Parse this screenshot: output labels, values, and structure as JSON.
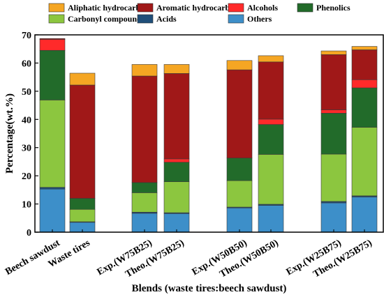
{
  "chart_data": {
    "type": "bar",
    "stacked": true,
    "xlabel": "Blends (waste tires:beech sawdust)",
    "ylabel": "Percentage(wt.%)",
    "ylim": [
      0,
      70
    ],
    "yticks": [
      0,
      10,
      20,
      30,
      40,
      50,
      60,
      70
    ],
    "grid": false,
    "legend_position": "top",
    "categories": [
      "Beech sawdust",
      "Waste tires",
      "Exp.(W75B25)",
      "Theo.(W75B25)",
      "Exp.(W50B50)",
      "Theo.(W50B50)",
      "Exp.(W25B75)",
      "Theo.(W25B75)"
    ],
    "series": [
      {
        "name": "Others",
        "color": "#3d8fc9",
        "values": [
          15.3,
          3.5,
          6.7,
          6.6,
          8.6,
          9.5,
          10.4,
          12.5
        ]
      },
      {
        "name": "Acids",
        "color": "#1f4e79",
        "values": [
          0.6,
          0.2,
          0.4,
          0.3,
          0.3,
          0.4,
          0.5,
          0.4
        ]
      },
      {
        "name": "Carbonyl compounds",
        "color": "#8cc63f",
        "values": [
          31.0,
          4.4,
          6.9,
          11.0,
          9.4,
          17.7,
          16.8,
          24.3
        ]
      },
      {
        "name": "Phenolics",
        "color": "#226b2a",
        "values": [
          17.6,
          3.9,
          3.6,
          6.9,
          8.0,
          10.6,
          14.5,
          14.0
        ]
      },
      {
        "name": "Alcohols",
        "color": "#ff2a2a",
        "values": [
          3.9,
          0.0,
          0.0,
          1.2,
          0.0,
          1.9,
          1.2,
          2.9
        ]
      },
      {
        "name": "Aromatic hydrocarbons",
        "color": "#a01818",
        "values": [
          0.3,
          40.2,
          37.8,
          30.3,
          31.3,
          20.3,
          19.6,
          10.6
        ]
      },
      {
        "name": "Aliphatic hydrocarbons",
        "color": "#f5a623",
        "values": [
          0.0,
          4.2,
          4.1,
          3.2,
          3.3,
          2.2,
          1.3,
          1.2
        ]
      }
    ],
    "legend": [
      {
        "name": "Aliphatic hydrocarbons",
        "color": "#f5a623"
      },
      {
        "name": "Aromatic hydrocarbons",
        "color": "#a01818"
      },
      {
        "name": "Alcohols",
        "color": "#ff2a2a"
      },
      {
        "name": "Phenolics",
        "color": "#226b2a"
      },
      {
        "name": "Carbonyl compounds",
        "color": "#8cc63f"
      },
      {
        "name": "Acids",
        "color": "#1f4e79"
      },
      {
        "name": "Others",
        "color": "#3d8fc9"
      }
    ]
  }
}
